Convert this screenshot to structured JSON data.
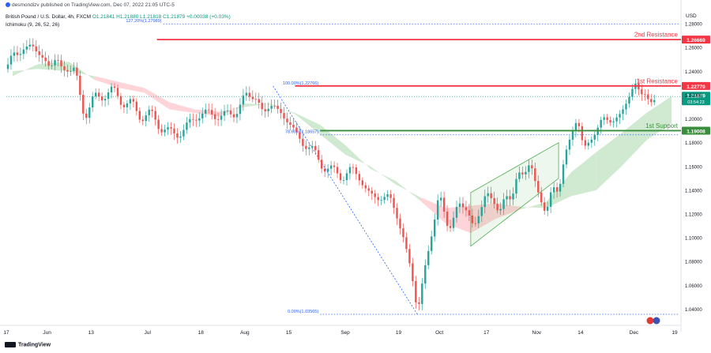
{
  "header": {
    "published": "desmondizv published on TradingView.com, Dec 07, 2022 21:05 UTC-5",
    "symbol": "British Pound / U.S. Dollar, 4h, FXCM",
    "ohlc": "O1.21841  H1.21880  L1.21818  C1.21879  +0.00038 (+0.03%)",
    "indicator": "Ichimoku (9, 26, 52, 26)"
  },
  "footer": {
    "brand": "TradingView"
  },
  "chart_data": {
    "type": "line",
    "currency": "USD",
    "ylim": [
      1.029,
      1.292
    ],
    "y_ticks": [
      1.28,
      1.26,
      1.24,
      1.22,
      1.2,
      1.18,
      1.16,
      1.14,
      1.12,
      1.1,
      1.08,
      1.06,
      1.04
    ],
    "x_ticks": [
      {
        "label": "17",
        "x": 0
      },
      {
        "label": "Jun",
        "x": 13
      },
      {
        "label": "13",
        "x": 27
      },
      {
        "label": "Jul",
        "x": 45
      },
      {
        "label": "18",
        "x": 62
      },
      {
        "label": "Aug",
        "x": 76
      },
      {
        "label": "15",
        "x": 90
      },
      {
        "label": "Sep",
        "x": 108
      },
      {
        "label": "19",
        "x": 125
      },
      {
        "label": "Oct",
        "x": 138
      },
      {
        "label": "17",
        "x": 153
      },
      {
        "label": "Nov",
        "x": 169
      },
      {
        "label": "14",
        "x": 183
      },
      {
        "label": "Dec",
        "x": 200
      },
      {
        "label": "19",
        "x": 213
      }
    ],
    "price": {
      "x": [
        0,
        2,
        4,
        6,
        8,
        10,
        12,
        14,
        16,
        18,
        20,
        22,
        25,
        28,
        31,
        34,
        37,
        40,
        43,
        46,
        49,
        52,
        55,
        58,
        61,
        64,
        67,
        70,
        73,
        76,
        78,
        80,
        82,
        85,
        87,
        89,
        92,
        95,
        98,
        101,
        104,
        107,
        110,
        113,
        116,
        119,
        122,
        125,
        127,
        129,
        131,
        132,
        133,
        134,
        136,
        138,
        141,
        144,
        147,
        149,
        151,
        153,
        155,
        157,
        159,
        161,
        163,
        165,
        167,
        169,
        171,
        172,
        174,
        176,
        178,
        180,
        182,
        184,
        187,
        190,
        193,
        196,
        198,
        200,
        201,
        202,
        203,
        205,
        206,
        207
      ],
      "y": [
        1.242,
        1.254,
        1.249,
        1.258,
        1.264,
        1.258,
        1.254,
        1.244,
        1.25,
        1.238,
        1.236,
        1.244,
        1.2,
        1.226,
        1.212,
        1.226,
        1.208,
        1.222,
        1.198,
        1.208,
        1.184,
        1.194,
        1.186,
        1.202,
        1.196,
        1.206,
        1.198,
        1.212,
        1.202,
        1.221,
        1.213,
        1.214,
        1.206,
        1.216,
        1.21,
        1.198,
        1.188,
        1.172,
        1.18,
        1.158,
        1.162,
        1.142,
        1.16,
        1.148,
        1.142,
        1.13,
        1.134,
        1.11,
        1.098,
        1.076,
        1.04,
        1.054,
        1.072,
        1.082,
        1.104,
        1.136,
        1.104,
        1.134,
        1.124,
        1.108,
        1.118,
        1.136,
        1.13,
        1.122,
        1.14,
        1.134,
        1.156,
        1.15,
        1.16,
        1.14,
        1.126,
        1.122,
        1.148,
        1.14,
        1.17,
        1.184,
        1.196,
        1.174,
        1.186,
        1.206,
        1.196,
        1.202,
        1.212,
        1.228,
        1.232,
        1.221,
        1.226,
        1.218,
        1.216,
        1.219
      ]
    },
    "cloud": {
      "x": [
        2,
        10,
        20,
        28,
        36,
        44,
        52,
        60,
        68,
        76,
        84,
        92,
        100,
        108,
        116,
        124,
        132,
        140,
        148,
        156,
        164,
        172,
        180,
        188,
        196,
        204,
        212
      ],
      "span_a": [
        1.236,
        1.246,
        1.248,
        1.233,
        1.226,
        1.222,
        1.208,
        1.205,
        1.202,
        1.213,
        1.212,
        1.205,
        1.195,
        1.178,
        1.158,
        1.148,
        1.131,
        1.112,
        1.104,
        1.116,
        1.124,
        1.13,
        1.155,
        1.172,
        1.188,
        1.205,
        1.219
      ],
      "span_b": [
        1.24,
        1.242,
        1.24,
        1.236,
        1.231,
        1.226,
        1.214,
        1.208,
        1.206,
        1.21,
        1.213,
        1.204,
        1.187,
        1.17,
        1.16,
        1.145,
        1.134,
        1.125,
        1.127,
        1.129,
        1.126,
        1.125,
        1.135,
        1.14,
        1.16,
        1.182,
        1.196
      ]
    },
    "levels": [
      {
        "name": "2nd Resistance",
        "value": "1.26669",
        "color": "#f23645"
      },
      {
        "name": "1st Resistance",
        "value": "1.22770",
        "color": "#f23645"
      },
      {
        "name": "1st Support",
        "value": "1.19008",
        "color": "#388e3c"
      }
    ],
    "current_price": {
      "value": "1.21879",
      "countdown": "03:54:23",
      "color": "#089981"
    },
    "fib": [
      {
        "label": "127.20%(1.27989)",
        "value": 1.27989
      },
      {
        "label": "100.00%(1.22766)",
        "value": 1.22766
      },
      {
        "label": "78.60%(1.18657)",
        "value": 1.18657
      },
      {
        "label": "0.00%(1.03565)",
        "value": 1.03565
      }
    ],
    "colors": {
      "up": "#26a69a",
      "down": "#ef5350",
      "cloud_bull": "#c8e6c9",
      "cloud_bear": "#ffcdd2",
      "channel": "#4caf50",
      "fib": "#2962ff",
      "axis_text": "#131722"
    }
  }
}
